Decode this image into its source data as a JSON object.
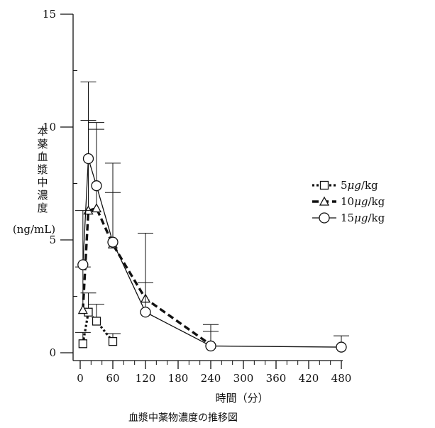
{
  "chart_data": {
    "type": "line",
    "caption": "血漿中薬物濃度の推移図",
    "xlabel": "時間（分）",
    "ylabel_lines": [
      "本",
      "薬",
      "血",
      "漿",
      "中",
      "濃",
      "度"
    ],
    "ylabel_unit": "(ng/mL)",
    "xlim": [
      0,
      480
    ],
    "ylim": [
      0,
      15
    ],
    "x_ticks": [
      0,
      60,
      120,
      180,
      240,
      300,
      360,
      420,
      480
    ],
    "x_tick_labels": [
      "0",
      "60",
      "120",
      "180",
      "240",
      "300",
      "360",
      "420",
      "480"
    ],
    "y_ticks": [
      0,
      5,
      10,
      15
    ],
    "y_tick_labels": [
      "0",
      "5",
      "10",
      "15"
    ],
    "grid": false,
    "legend_position": "right",
    "series": [
      {
        "name": "5μg/kg",
        "legend_prefix": "5",
        "legend_suffix": "/kg",
        "marker": "square",
        "line": "dotted",
        "x": [
          5,
          15,
          30,
          60
        ],
        "y": [
          0.4,
          1.8,
          1.4,
          0.5
        ],
        "err": [
          0.5,
          0.85,
          0.75,
          0.35
        ]
      },
      {
        "name": "10μg/kg",
        "legend_prefix": "10",
        "legend_suffix": "/kg",
        "marker": "triangle",
        "line": "dashed",
        "x": [
          5,
          15,
          30,
          60,
          120,
          240
        ],
        "y": [
          1.9,
          6.3,
          6.4,
          4.8,
          2.4,
          0.35
        ],
        "err": [
          1.9,
          4.0,
          3.5,
          2.3,
          0.7,
          0.6
        ]
      },
      {
        "name": "15μg/kg",
        "legend_prefix": "15",
        "legend_suffix": "/kg",
        "marker": "circle",
        "line": "solid",
        "x": [
          5,
          15,
          30,
          60,
          120,
          240,
          480
        ],
        "y": [
          3.9,
          8.6,
          7.4,
          4.9,
          1.8,
          0.3,
          0.25
        ],
        "err": [
          2.4,
          3.4,
          2.8,
          3.5,
          3.5,
          0.95,
          0.5
        ]
      }
    ],
    "mu_glyph": "μg",
    "colors": {
      "ink": "#111111"
    }
  }
}
